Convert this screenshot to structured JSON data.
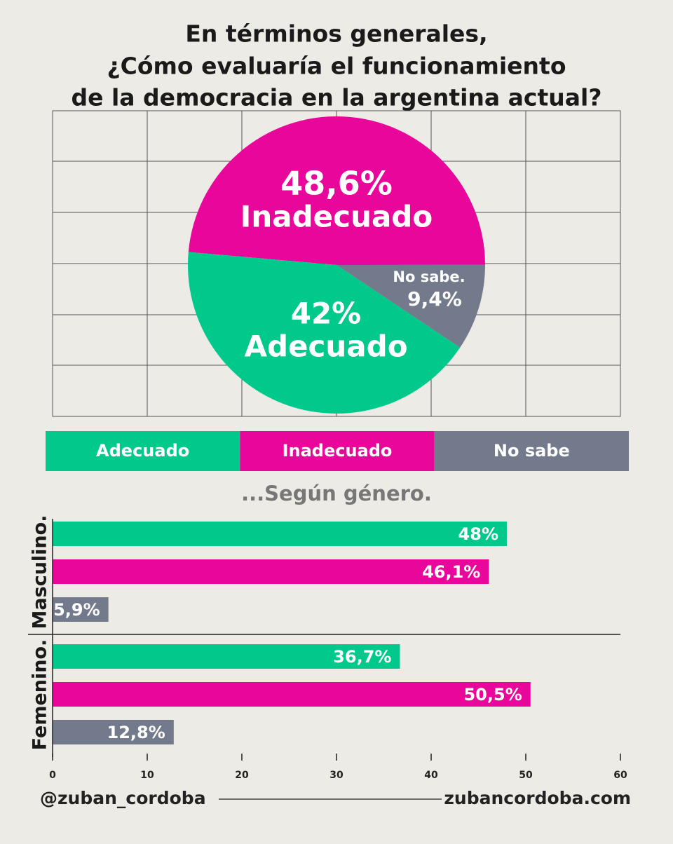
{
  "chart_data": [
    {
      "type": "pie",
      "title": [
        "En términos generales,",
        "¿Cómo evaluaría el funcionamiento",
        "de la democracia en la argentina actual?"
      ],
      "categories": [
        "Inadecuado",
        "No sabe.",
        "Adecuado"
      ],
      "values": [
        48.6,
        9.4,
        42
      ],
      "value_labels": [
        "48,6%",
        "9,4%",
        "42%"
      ],
      "colors": [
        "#e8079a",
        "#737a8c",
        "#00c98b"
      ]
    },
    {
      "type": "hbar",
      "subtitle": "...Según género.",
      "categories": [
        "Masculino.",
        "Femenino."
      ],
      "series": [
        {
          "name": "Adecuado",
          "color": "#00c98b",
          "values": [
            48,
            36.7
          ],
          "value_labels": [
            "48%",
            "36,7%"
          ]
        },
        {
          "name": "Inadecuado",
          "color": "#e8079a",
          "values": [
            46.1,
            50.5
          ],
          "value_labels": [
            "46,1%",
            "50,5%"
          ]
        },
        {
          "name": "No sabe",
          "color": "#737a8c",
          "values": [
            5.9,
            12.8
          ],
          "value_labels": [
            "5,9%",
            "12,8%"
          ]
        }
      ],
      "xlim": [
        0,
        60
      ],
      "xticks": [
        0,
        10,
        20,
        30,
        40,
        50,
        60
      ]
    }
  ],
  "footer": {
    "left": "@zuban_cordoba",
    "right": "zubancordoba.com"
  }
}
